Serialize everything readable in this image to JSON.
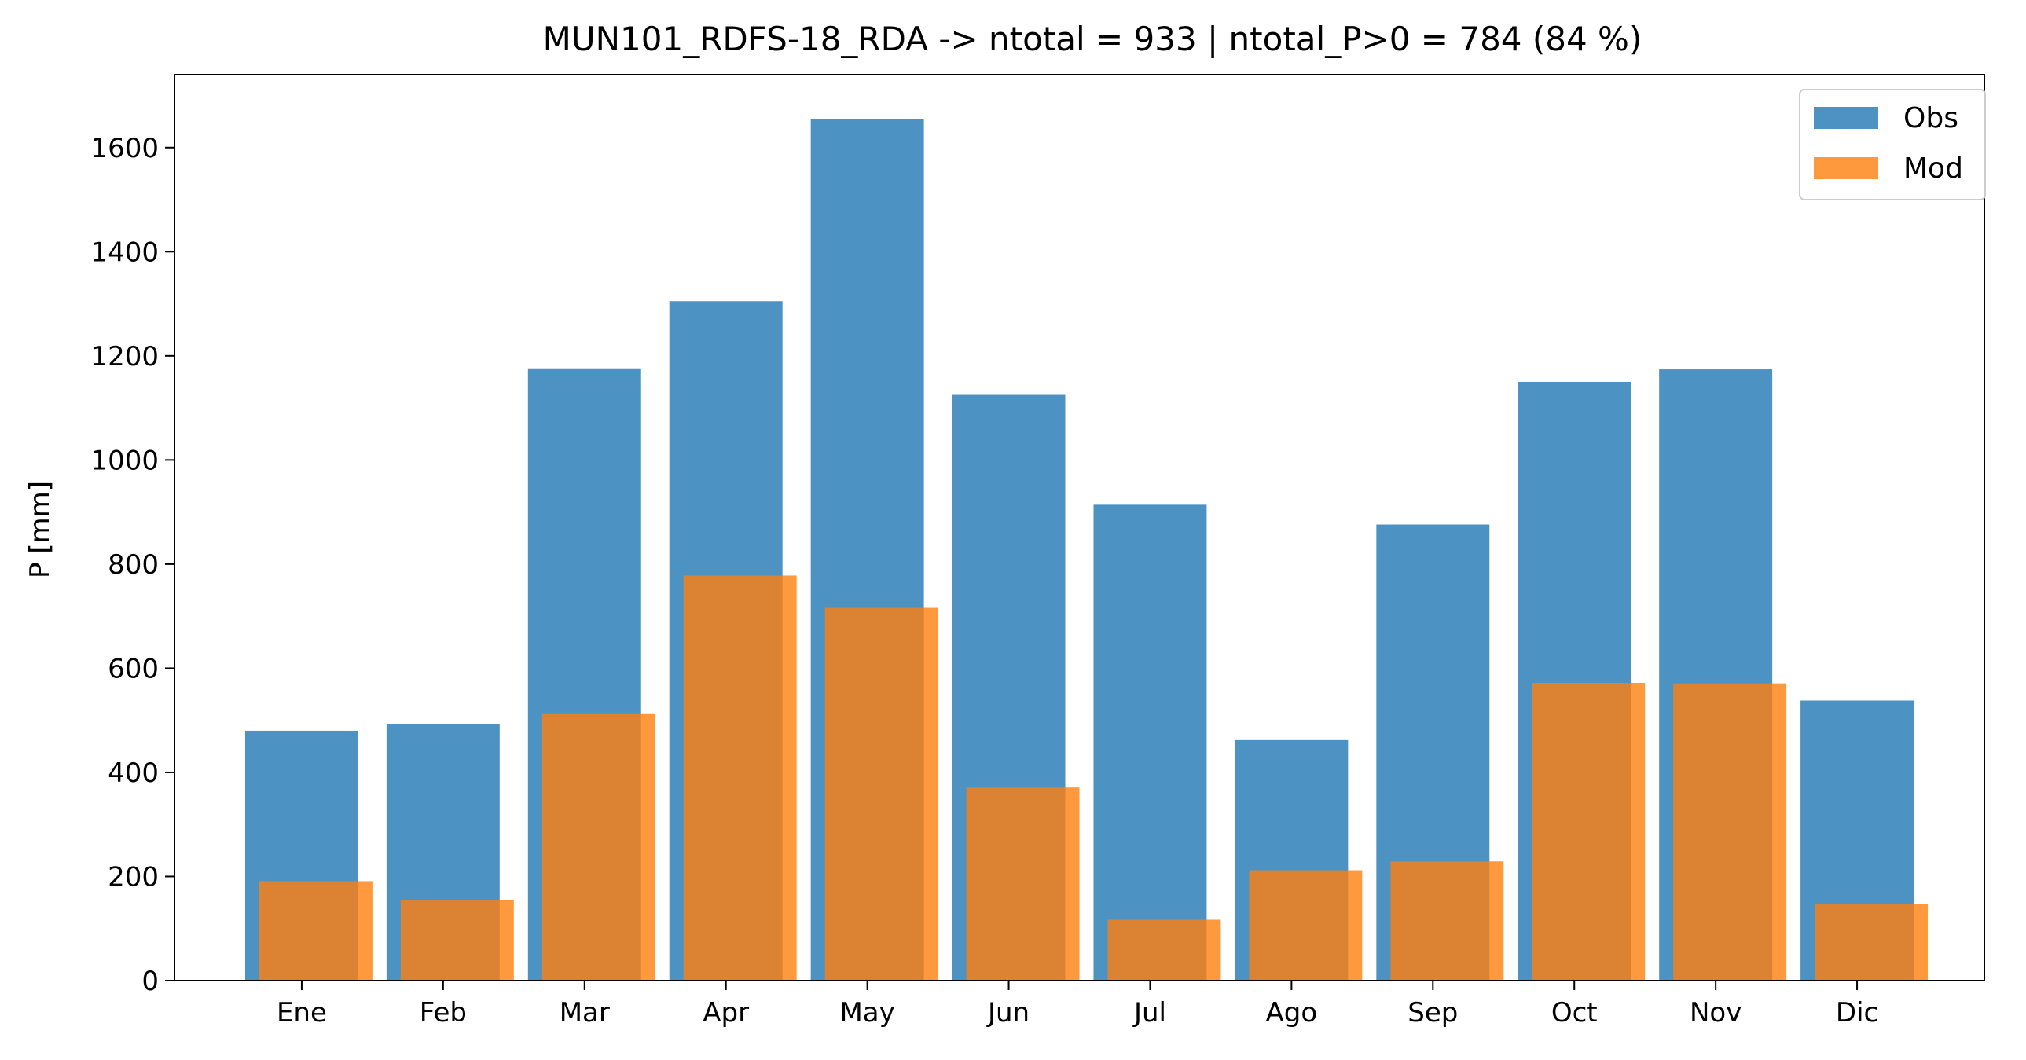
{
  "chart_data": {
    "type": "bar",
    "title": "MUN101_RDFS-18_RDA -> ntotal = 933 | ntotal_P>0 = 784 (84 %)",
    "xlabel": "",
    "ylabel": "P [mm]",
    "ylim": [
      0,
      1740
    ],
    "yticks": [
      0,
      200,
      400,
      600,
      800,
      1000,
      1200,
      1400,
      1600
    ],
    "categories": [
      "Ene",
      "Feb",
      "Mar",
      "Apr",
      "May",
      "Jun",
      "Jul",
      "Ago",
      "Sep",
      "Oct",
      "Nov",
      "Dic"
    ],
    "series": [
      {
        "name": "Obs",
        "color": "#1f77b4",
        "opacity": 0.8,
        "values": [
          480,
          492,
          1176,
          1305,
          1654,
          1125,
          914,
          462,
          876,
          1150,
          1174,
          538
        ]
      },
      {
        "name": "Mod",
        "color": "#ff7f0e",
        "opacity": 0.8,
        "values": [
          191,
          155,
          512,
          778,
          716,
          371,
          117,
          212,
          229,
          572,
          571,
          147
        ]
      }
    ],
    "grid": false,
    "legend_position": "top-right"
  }
}
